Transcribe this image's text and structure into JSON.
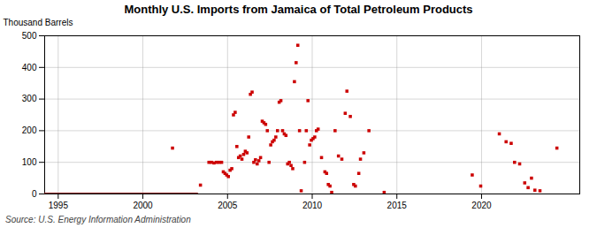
{
  "chart_data": {
    "type": "scatter",
    "title": "Monthly U.S. Imports from Jamaica of Total Petroleum Products",
    "ylabel": "Thousand Barrels",
    "caption": "Source: U.S. Energy Information Administration",
    "xlim": [
      1994.2,
      2025.8
    ],
    "ylim": [
      0,
      500
    ],
    "xticks": [
      1995,
      2000,
      2005,
      2010,
      2015,
      2020
    ],
    "yticks": [
      0,
      100,
      200,
      300,
      400,
      500
    ],
    "grid": true,
    "series": [
      {
        "type": "line",
        "color": "#8b1a1a",
        "x": [
          1994.2,
          2003.2
        ],
        "values": [
          0,
          0
        ]
      },
      {
        "type": "scatter",
        "color": "#cc0000",
        "marker": "square",
        "x": [
          2001.75,
          2003.4,
          2003.9,
          2004.05,
          2004.2,
          2004.35,
          2004.5,
          2004.65,
          2004.75,
          2004.85,
          2004.95,
          2005.05,
          2005.15,
          2005.25,
          2005.35,
          2005.45,
          2005.55,
          2005.65,
          2005.75,
          2005.85,
          2005.95,
          2006.05,
          2006.15,
          2006.25,
          2006.35,
          2006.45,
          2006.55,
          2006.65,
          2006.75,
          2006.85,
          2006.95,
          2007.05,
          2007.15,
          2007.25,
          2007.35,
          2007.45,
          2007.55,
          2007.65,
          2007.75,
          2007.85,
          2007.95,
          2008.05,
          2008.15,
          2008.25,
          2008.35,
          2008.45,
          2008.55,
          2008.65,
          2008.75,
          2008.85,
          2008.95,
          2009.05,
          2009.15,
          2009.25,
          2009.35,
          2009.55,
          2009.65,
          2009.75,
          2009.85,
          2009.95,
          2010.05,
          2010.15,
          2010.25,
          2010.35,
          2010.55,
          2010.75,
          2010.85,
          2010.95,
          2011.05,
          2011.15,
          2011.35,
          2011.55,
          2011.75,
          2011.95,
          2012.05,
          2012.25,
          2012.45,
          2012.55,
          2012.75,
          2012.85,
          2013.05,
          2013.35,
          2014.25,
          2019.45,
          2019.95,
          2021.05,
          2021.45,
          2021.75,
          2021.95,
          2022.25,
          2022.55,
          2022.75,
          2022.95,
          2023.15,
          2023.45,
          2024.45
        ],
        "values": [
          145,
          28,
          100,
          100,
          98,
          100,
          100,
          100,
          70,
          65,
          60,
          55,
          75,
          80,
          250,
          258,
          150,
          115,
          120,
          110,
          125,
          135,
          130,
          180,
          315,
          322,
          100,
          108,
          95,
          105,
          115,
          230,
          225,
          220,
          200,
          100,
          155,
          165,
          170,
          180,
          200,
          290,
          295,
          200,
          190,
          185,
          95,
          100,
          90,
          80,
          355,
          415,
          470,
          200,
          10,
          100,
          200,
          295,
          155,
          170,
          175,
          180,
          200,
          205,
          115,
          70,
          65,
          30,
          25,
          5,
          200,
          120,
          110,
          255,
          325,
          245,
          30,
          25,
          65,
          110,
          130,
          200,
          5,
          60,
          25,
          190,
          165,
          160,
          100,
          95,
          35,
          20,
          50,
          12,
          10,
          145
        ]
      }
    ]
  }
}
